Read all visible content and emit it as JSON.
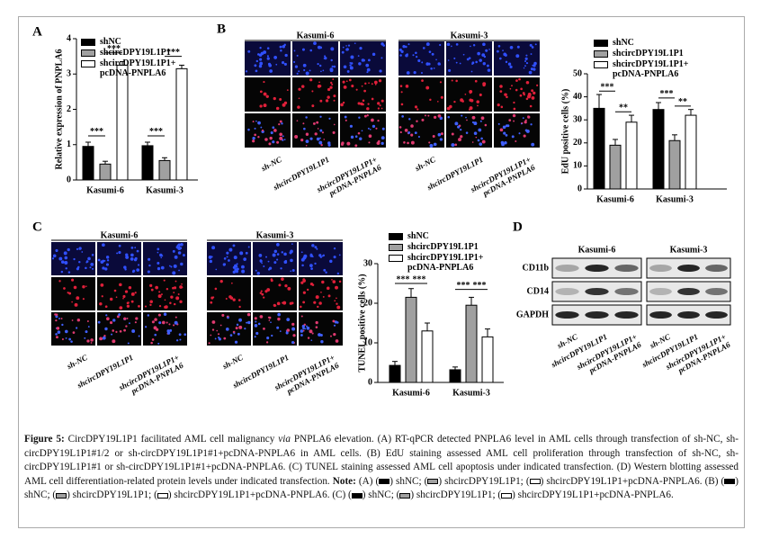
{
  "panel_labels": [
    "A",
    "B",
    "C",
    "D"
  ],
  "chart_data": [
    {
      "type": "bar",
      "ylabel": "Relative expression of PNPLA6",
      "categories": [
        "Kasumi-6",
        "Kasumi-3"
      ],
      "series": [
        {
          "name": "shNC",
          "color": "#000000",
          "values": [
            0.95,
            0.97
          ],
          "errors": [
            0.12,
            0.1
          ]
        },
        {
          "name": "shcircDPY19L1P1",
          "color": "#a0a0a0",
          "values": [
            0.45,
            0.55
          ],
          "errors": [
            0.08,
            0.08
          ]
        },
        {
          "name": "shcircDPY19L1P1+ pcDNA-PNPLA6",
          "color": "#ffffff",
          "values": [
            3.25,
            3.15
          ],
          "errors": [
            0.1,
            0.1
          ]
        }
      ],
      "ylim": [
        0,
        4
      ],
      "yticks": [
        0,
        1,
        2,
        3,
        4
      ],
      "annotations": [
        "***",
        "***",
        "***",
        "***"
      ]
    },
    {
      "type": "bar",
      "ylabel": "EdU positive cells (%)",
      "categories": [
        "Kasumi-6",
        "Kasumi-3"
      ],
      "series": [
        {
          "name": "shNC",
          "color": "#000000",
          "values": [
            35,
            34.5
          ],
          "errors": [
            6,
            3
          ]
        },
        {
          "name": "shcircDPY19L1P1",
          "color": "#a0a0a0",
          "values": [
            19,
            21
          ],
          "errors": [
            2.5,
            2.5
          ]
        },
        {
          "name": "shcircDPY19L1P1+ pcDNA-PNPLA6",
          "color": "#ffffff",
          "values": [
            29,
            32
          ],
          "errors": [
            3,
            2.5
          ]
        }
      ],
      "ylim": [
        0,
        50
      ],
      "yticks": [
        0,
        10,
        20,
        30,
        40,
        50
      ],
      "annotations": [
        "***",
        "**",
        "***",
        "**"
      ]
    },
    {
      "type": "bar",
      "ylabel": "TUNEL positive cells (%)",
      "categories": [
        "Kasumi-6",
        "Kasumi-3"
      ],
      "series": [
        {
          "name": "shNC",
          "color": "#000000",
          "values": [
            4.3,
            3.2
          ],
          "errors": [
            1,
            0.7
          ]
        },
        {
          "name": "shcircDPY19L1P1",
          "color": "#a0a0a0",
          "values": [
            21.5,
            19.5
          ],
          "errors": [
            2.2,
            2
          ]
        },
        {
          "name": "shcircDPY19L1P1+ pcDNA-PNPLA6",
          "color": "#ffffff",
          "values": [
            13,
            11.5
          ],
          "errors": [
            2,
            2
          ]
        }
      ],
      "ylim": [
        0,
        30
      ],
      "yticks": [
        0,
        10,
        20,
        30
      ],
      "annotations": [
        "***",
        "***",
        "***",
        "***"
      ]
    }
  ],
  "panel_b_images": {
    "cell_lines": [
      "Kasumi-6",
      "Kasumi-3"
    ],
    "columns": [
      "sh-NC",
      "shcircDPY19L1P1",
      "shcircDPY19L1P1+ pcDNA-PNPLA6"
    ]
  },
  "panel_c_images": {
    "cell_lines": [
      "Kasumi-6",
      "Kasumi-3"
    ],
    "columns": [
      "sh-NC",
      "shcircDPY19L1P1",
      "shcircDPY19L1P1+ pcDNA-PNPLA6"
    ]
  },
  "western": {
    "cell_lines": [
      "Kasumi-6",
      "Kasumi-3"
    ],
    "proteins": [
      "CD11b",
      "CD14",
      "GAPDH"
    ],
    "columns": [
      "sh-NC",
      "shcircDPY19L1P1",
      "shcircDPY19L1P1+ pcDNA-PNPLA6"
    ]
  },
  "caption": {
    "parts": [
      "Figure 5:",
      " CircDPY19L1P1 facilitated AML cell malignancy ",
      "via",
      " PNPLA6 elevation. (A) RT-qPCR detected PNPLA6 level in AML cells through transfection of sh-NC, sh-circDPY19L1P1#1/2 or sh-circDPY19L1P1#1+pcDNA-PNPLA6 in AML cells. (B) EdU staining assessed AML cell proliferation through transfection of sh-NC, sh-circDPY19L1P1#1 or sh-circDPY19L1P1#1+pcDNA-PNPLA6. (C) TUNEL staining assessed AML cell apoptosis under indicated transfection. (D) Western blotting assessed AML cell differentiation-related protein levels under indicated transfection. ",
      "Note:",
      " (A) (",
      ") shNC; (",
      ") shcircDPY19L1P1; (",
      ") shcircDPY19L1P1+pcDNA-PNPLA6. (B) (",
      ") shNC; (",
      ") shcircDPY19L1P1; (",
      ") shcircDPY19L1P1+pcDNA-PNPLA6. (C) (",
      ") shNC; (",
      ") shcircDPY19L1P1; (",
      ") shcircDPY19L1P1+pcDNA-PNPLA6."
    ]
  }
}
